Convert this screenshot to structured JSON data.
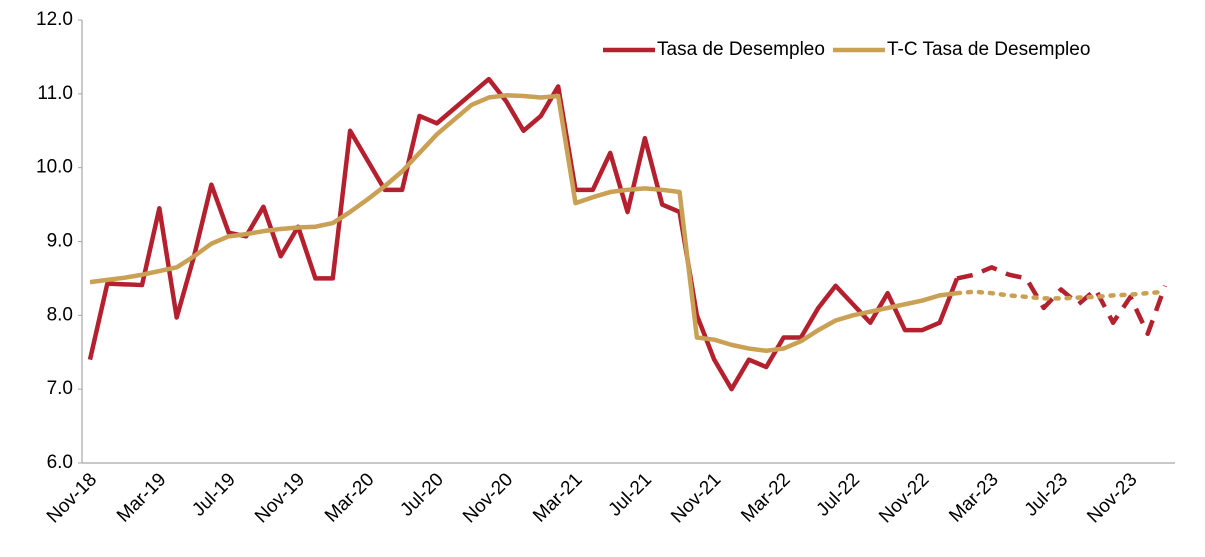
{
  "chart_data": {
    "type": "line",
    "categories": [
      "Nov-18",
      null,
      null,
      null,
      "Mar-19",
      null,
      null,
      null,
      "Jul-19",
      null,
      null,
      null,
      "Nov-19",
      null,
      null,
      null,
      "Mar-20",
      null,
      null,
      null,
      "Jul-20",
      null,
      null,
      null,
      "Nov-20",
      null,
      null,
      null,
      "Mar-21",
      null,
      null,
      null,
      "Jul-21",
      null,
      null,
      null,
      "Nov-21",
      null,
      null,
      null,
      "Mar-22",
      null,
      null,
      null,
      "Jul-22",
      null,
      null,
      null,
      "Nov-22",
      null,
      null,
      null,
      "Mar-23",
      null,
      null,
      null,
      "Jul-23",
      null,
      null,
      null,
      "Nov-23",
      null,
      null
    ],
    "series": [
      {
        "name": "Tasa de Desempleo",
        "color": "#b5202e",
        "projection_style": "dashed",
        "projection_from": 50,
        "values": [
          7.4,
          8.43,
          8.42,
          8.41,
          9.45,
          7.97,
          8.8,
          9.77,
          9.12,
          9.07,
          9.47,
          8.8,
          9.2,
          8.5,
          8.5,
          10.5,
          10.1,
          9.7,
          9.7,
          10.7,
          10.6,
          10.8,
          11.0,
          11.2,
          10.9,
          10.5,
          10.7,
          11.1,
          9.7,
          9.7,
          10.2,
          9.4,
          10.4,
          9.5,
          9.4,
          8.0,
          7.4,
          7.0,
          7.4,
          7.3,
          7.7,
          7.7,
          8.1,
          8.4,
          8.15,
          7.9,
          8.3,
          7.8,
          7.8,
          7.9,
          8.5,
          8.55,
          8.65,
          8.55,
          8.5,
          8.1,
          8.35,
          8.15,
          8.35,
          7.9,
          8.25,
          7.75,
          8.4
        ]
      },
      {
        "name": "T-C Tasa de Desempleo",
        "color": "#c9a054",
        "projection_style": "dotted",
        "projection_from": 50,
        "values": [
          8.45,
          8.48,
          8.51,
          8.55,
          8.6,
          8.65,
          8.8,
          8.97,
          9.07,
          9.1,
          9.14,
          9.17,
          9.19,
          9.2,
          9.25,
          9.4,
          9.57,
          9.75,
          9.95,
          10.2,
          10.45,
          10.65,
          10.85,
          10.95,
          10.98,
          10.97,
          10.95,
          10.97,
          9.52,
          9.6,
          9.67,
          9.7,
          9.72,
          9.7,
          9.67,
          7.7,
          7.67,
          7.6,
          7.55,
          7.52,
          7.55,
          7.65,
          7.8,
          7.93,
          8.0,
          8.05,
          8.1,
          8.15,
          8.2,
          8.27,
          8.3,
          8.32,
          8.3,
          8.27,
          8.25,
          8.23,
          8.23,
          8.24,
          8.25,
          8.27,
          8.28,
          8.3,
          8.32
        ]
      }
    ],
    "ylim": [
      6,
      12
    ],
    "yticks": [
      {
        "value": 6,
        "label": "6.0"
      },
      {
        "value": 7,
        "label": "7.0"
      },
      {
        "value": 8,
        "label": "8.0"
      },
      {
        "value": 9,
        "label": "9.0"
      },
      {
        "value": 10,
        "label": "10.0"
      },
      {
        "value": 11,
        "label": "11.0"
      },
      {
        "value": 12,
        "label": "12.0"
      }
    ],
    "grid": false,
    "legend": "top-right"
  }
}
